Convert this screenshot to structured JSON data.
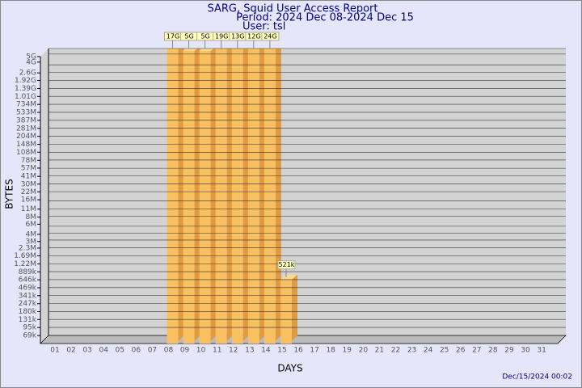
{
  "chart_data": {
    "type": "bar",
    "title": "SARG, Squid User Access Report",
    "subtitle": "Period: 2024 Dec 08-2024 Dec 15",
    "user": "User: tsl",
    "x_label": "DAYS",
    "y_label": "BYTES",
    "timestamp": "Dec/15/2024 00:02",
    "log_scale": true,
    "grid": true,
    "color": "#f8c060",
    "categories": [
      "01",
      "02",
      "03",
      "04",
      "05",
      "06",
      "07",
      "08",
      "09",
      "10",
      "11",
      "12",
      "13",
      "14",
      "15",
      "16",
      "17",
      "18",
      "19",
      "20",
      "21",
      "22",
      "23",
      "24",
      "25",
      "26",
      "27",
      "28",
      "29",
      "30",
      "31"
    ],
    "values": [
      null,
      null,
      null,
      null,
      null,
      null,
      null,
      17000000000,
      5000000000,
      5000000000,
      19000000000,
      13000000000,
      12000000000,
      24000000000,
      521000,
      null,
      null,
      null,
      null,
      null,
      null,
      null,
      null,
      null,
      null,
      null,
      null,
      null,
      null,
      null,
      null
    ],
    "value_labels": [
      null,
      null,
      null,
      null,
      null,
      null,
      null,
      "17G",
      "5G",
      "5G",
      "19G",
      "13G",
      "12G",
      "24G",
      "521k",
      null,
      null,
      null,
      null,
      null,
      null,
      null,
      null,
      null,
      null,
      null,
      null,
      null,
      null,
      null,
      null
    ],
    "ylim": [
      50000,
      5000000000
    ],
    "yticks": [
      {
        "value": 69000,
        "label": "69k"
      },
      {
        "value": 95000,
        "label": "95k"
      },
      {
        "value": 131000,
        "label": "131k"
      },
      {
        "value": 180000,
        "label": "180k"
      },
      {
        "value": 247000,
        "label": "247k"
      },
      {
        "value": 341000,
        "label": "341k"
      },
      {
        "value": 469000,
        "label": "469k"
      },
      {
        "value": 646000,
        "label": "646k"
      },
      {
        "value": 889000,
        "label": "889k"
      },
      {
        "value": 1220000,
        "label": "1.22M"
      },
      {
        "value": 1690000,
        "label": "1.69M"
      },
      {
        "value": 2300000,
        "label": "2.3M"
      },
      {
        "value": 3000000,
        "label": "3M"
      },
      {
        "value": 4000000,
        "label": "4M"
      },
      {
        "value": 6000000,
        "label": "6M"
      },
      {
        "value": 8000000,
        "label": "8M"
      },
      {
        "value": 11000000,
        "label": "11M"
      },
      {
        "value": 16000000,
        "label": "16M"
      },
      {
        "value": 22000000,
        "label": "22M"
      },
      {
        "value": 30000000,
        "label": "30M"
      },
      {
        "value": 41000000,
        "label": "41M"
      },
      {
        "value": 57000000,
        "label": "57M"
      },
      {
        "value": 78000000,
        "label": "78M"
      },
      {
        "value": 108000000,
        "label": "108M"
      },
      {
        "value": 148000000,
        "label": "148M"
      },
      {
        "value": 204000000,
        "label": "204M"
      },
      {
        "value": 281000000,
        "label": "281M"
      },
      {
        "value": 387000000,
        "label": "387M"
      },
      {
        "value": 533000000,
        "label": "533M"
      },
      {
        "value": 734000000,
        "label": "734M"
      },
      {
        "value": 1010000000,
        "label": "1.01G"
      },
      {
        "value": 1390000000,
        "label": "1.39G"
      },
      {
        "value": 1920000000,
        "label": "1.92G"
      },
      {
        "value": 2600000000,
        "label": "2.6G"
      },
      {
        "value": 4000000000,
        "label": "4G"
      },
      {
        "value": 5000000000,
        "label": "5G"
      }
    ]
  }
}
